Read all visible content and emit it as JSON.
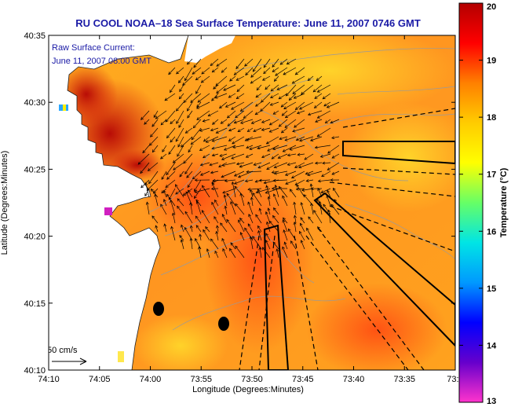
{
  "title": "RU COOL  NOAA–18  Sea Surface Temperature:  June 11, 2007 0746 GMT",
  "legend": {
    "line1": "Raw Surface Current:",
    "line2": "June 11, 2007 08:00 GMT"
  },
  "scale_label": "50 cm/s",
  "x_axis": {
    "label": "Longitude (Degrees:Minutes)",
    "ticks": [
      "74:10",
      "74:05",
      "74:00",
      "73:55",
      "73:50",
      "73:45",
      "73:40",
      "73:35",
      "73:3"
    ]
  },
  "y_axis": {
    "label": "Latitude (Degrees:Minutes)",
    "ticks": [
      "40:35",
      "40:30",
      "40:25",
      "40:20",
      "40:15",
      "40:10"
    ]
  },
  "colorbar": {
    "label": "Temperature (°C)",
    "min": 13,
    "max": 20,
    "ticks": [
      "20",
      "19",
      "18",
      "17",
      "16",
      "15",
      "14",
      "13"
    ],
    "colors": [
      "#ff33cc",
      "#6600cc",
      "#0000ff",
      "#0099ff",
      "#00e5e5",
      "#66ff66",
      "#ffff00",
      "#ffcc00",
      "#ff8000",
      "#ff0000",
      "#b30000"
    ]
  },
  "colors": {
    "sea_base": "#ff9a1e",
    "sea_warm": "#ff5a1a",
    "sea_cool": "#ffc62a",
    "land": "#ffffff",
    "coast_hot": "#d81a0a",
    "title_text": "#1a1aa6"
  }
}
